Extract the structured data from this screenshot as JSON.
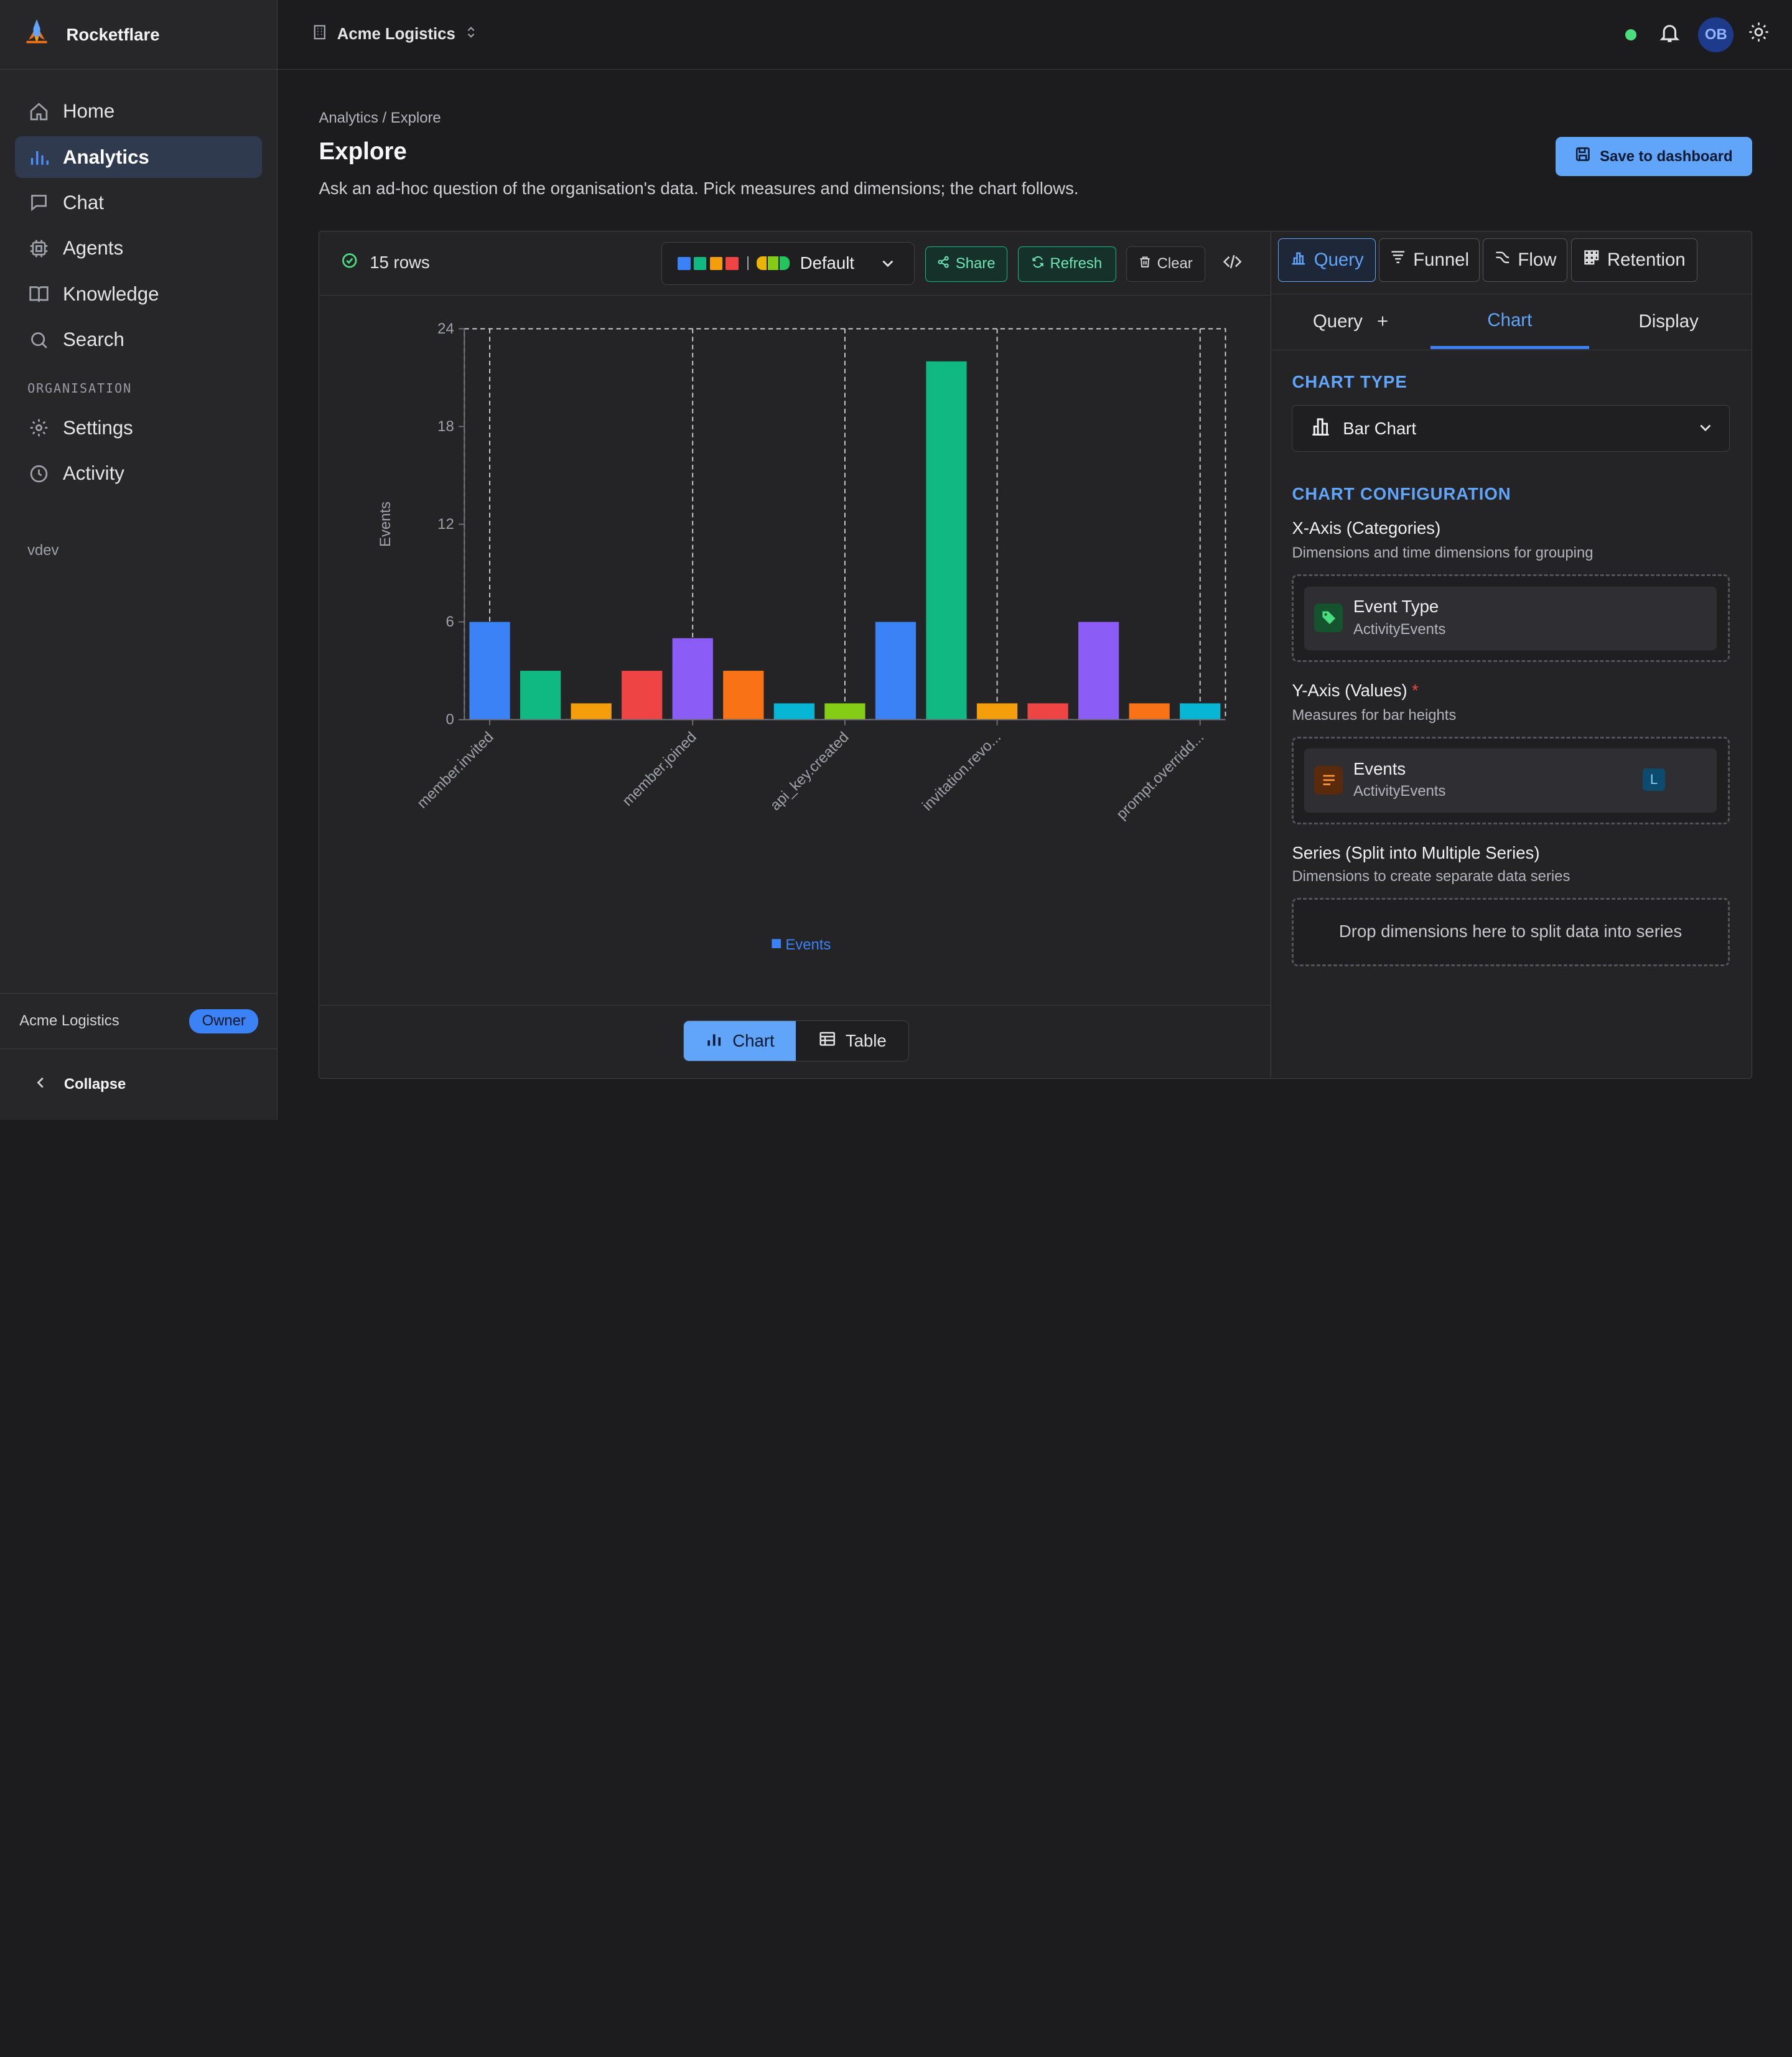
{
  "app": {
    "name": "Rocketflare"
  },
  "sidebar": {
    "items": [
      {
        "label": "Home",
        "icon": "home-icon"
      },
      {
        "label": "Analytics",
        "icon": "bar-chart-icon"
      },
      {
        "label": "Chat",
        "icon": "chat-icon"
      },
      {
        "label": "Agents",
        "icon": "cpu-icon"
      },
      {
        "label": "Knowledge",
        "icon": "book-icon"
      },
      {
        "label": "Search",
        "icon": "search-icon"
      }
    ],
    "section_label": "ORGANISATION",
    "org_items": [
      {
        "label": "Settings",
        "icon": "gear-icon"
      },
      {
        "label": "Activity",
        "icon": "clock-icon"
      }
    ],
    "env": "vdev",
    "org_name": "Acme Logistics",
    "role_badge": "Owner",
    "collapse_label": "Collapse"
  },
  "topbar": {
    "org_switcher": "Acme Logistics",
    "avatar_initials": "OB"
  },
  "page": {
    "breadcrumb": "Analytics / Explore",
    "title": "Explore",
    "description": "Ask an ad-hoc question of the organisation's data. Pick measures and dimensions; the chart follows.",
    "save_button": "Save to dashboard"
  },
  "toolbar": {
    "rows": "15 rows",
    "palette_label": "Default",
    "palette_swatches": [
      "#3b82f6",
      "#10b981",
      "#f59e0b",
      "#ef4444"
    ],
    "share": "Share",
    "refresh": "Refresh",
    "clear": "Clear"
  },
  "view_toggle": {
    "chart": "Chart",
    "table": "Table"
  },
  "mode_tabs": [
    "Query",
    "Funnel",
    "Flow",
    "Retention"
  ],
  "sub_tabs": {
    "query": "Query",
    "chart": "Chart",
    "display": "Display"
  },
  "config": {
    "chart_type_title": "CHART TYPE",
    "chart_type_value": "Bar Chart",
    "chart_config_title": "CHART CONFIGURATION",
    "x_axis_title": "X-Axis (Categories)",
    "x_axis_sub": "Dimensions and time dimensions for grouping",
    "x_dim_name": "Event Type",
    "x_dim_cube": "ActivityEvents",
    "y_axis_title": "Y-Axis (Values)",
    "y_axis_required": "*",
    "y_axis_sub": "Measures for bar heights",
    "y_measure_name": "Events",
    "y_measure_cube": "ActivityEvents",
    "y_measure_badge": "L",
    "series_title": "Series (Split into Multiple Series)",
    "series_sub": "Dimensions to create separate data series",
    "series_empty": "Drop dimensions here to split data into series"
  },
  "chart_data": {
    "type": "bar",
    "ylabel": "Events",
    "ylim": [
      0,
      24
    ],
    "yticks": [
      0,
      6,
      12,
      18,
      24
    ],
    "values": [
      6,
      3,
      1,
      3,
      5,
      3,
      1,
      1,
      6,
      22,
      1,
      1,
      6,
      1,
      1
    ],
    "bar_colors": [
      "#3b82f6",
      "#10b981",
      "#f59e0b",
      "#ef4444",
      "#8b5cf6",
      "#f97316",
      "#06b6d4",
      "#84cc16",
      "#3b82f6",
      "#10b981",
      "#f59e0b",
      "#ef4444",
      "#8b5cf6",
      "#f97316",
      "#06b6d4"
    ],
    "tick_labels": [
      {
        "text": "member.invited",
        "index": 0
      },
      {
        "text": "member.joined",
        "index": 4
      },
      {
        "text": "api_key.created",
        "index": 7
      },
      {
        "text": "invitation.revo...",
        "index": 10
      },
      {
        "text": "prompt.overridd...",
        "index": 14
      }
    ],
    "legend": [
      {
        "name": "Events",
        "color": "#3b82f6"
      }
    ],
    "legend_position": "bottom"
  }
}
